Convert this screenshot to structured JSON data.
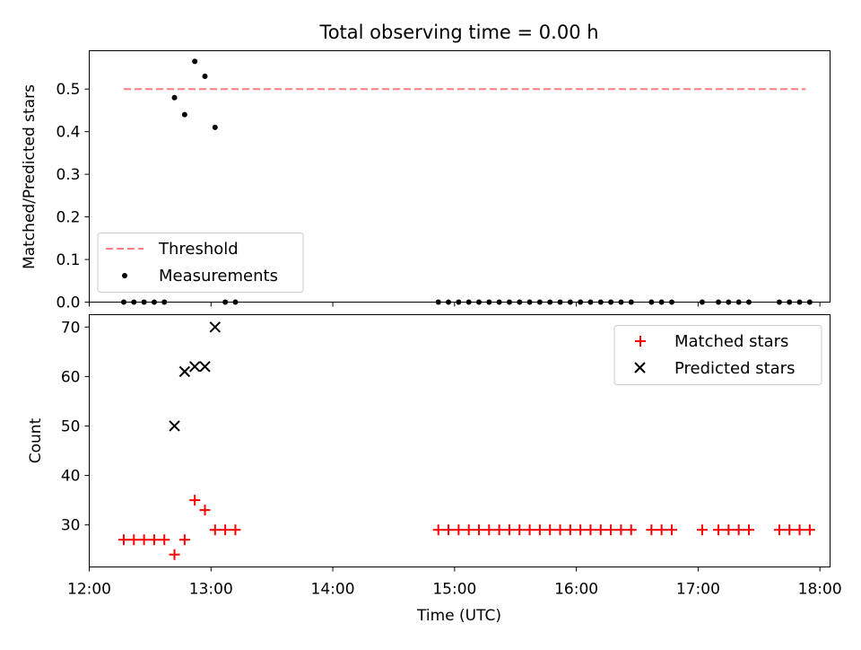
{
  "figure": {
    "title": "Total observing time = 0.00 h",
    "xlabel": "Time (UTC)",
    "x_ticks": [
      "12:00",
      "13:00",
      "14:00",
      "15:00",
      "16:00",
      "17:00",
      "18:00"
    ]
  },
  "chart_data": [
    {
      "type": "scatter",
      "title": "Total observing time = 0.00 h",
      "xlabel": "",
      "ylabel": "Matched/Predicted stars",
      "xlim": [
        "12:00",
        "18:05"
      ],
      "ylim": [
        0,
        0.59
      ],
      "y_ticks": [
        "0.0",
        "0.1",
        "0.2",
        "0.3",
        "0.4",
        "0.5"
      ],
      "legend_position": "lower-left",
      "threshold": {
        "name": "Threshold",
        "color": "#ff7f7f",
        "value": 0.5,
        "x_range": [
          "12:17",
          "17:53"
        ]
      },
      "series": [
        {
          "name": "Measurements",
          "color": "#000000",
          "marker": "dot",
          "points": [
            [
              "12:17",
              0
            ],
            [
              "12:22",
              0
            ],
            [
              "12:27",
              0
            ],
            [
              "12:32",
              0
            ],
            [
              "12:37",
              0
            ],
            [
              "12:42",
              0.48
            ],
            [
              "12:47",
              0.44
            ],
            [
              "12:52",
              0.565
            ],
            [
              "12:57",
              0.53
            ],
            [
              "13:02",
              0.41
            ],
            [
              "13:07",
              0
            ],
            [
              "13:12",
              0
            ],
            [
              "14:52",
              0
            ],
            [
              "14:57",
              0
            ],
            [
              "15:02",
              0
            ],
            [
              "15:07",
              0
            ],
            [
              "15:12",
              0
            ],
            [
              "15:17",
              0
            ],
            [
              "15:22",
              0
            ],
            [
              "15:27",
              0
            ],
            [
              "15:32",
              0
            ],
            [
              "15:37",
              0
            ],
            [
              "15:42",
              0
            ],
            [
              "15:47",
              0
            ],
            [
              "15:52",
              0
            ],
            [
              "15:57",
              0
            ],
            [
              "16:02",
              0
            ],
            [
              "16:07",
              0
            ],
            [
              "16:12",
              0
            ],
            [
              "16:17",
              0
            ],
            [
              "16:22",
              0
            ],
            [
              "16:27",
              0
            ],
            [
              "16:37",
              0
            ],
            [
              "16:42",
              0
            ],
            [
              "16:47",
              0
            ],
            [
              "17:02",
              0
            ],
            [
              "17:10",
              0
            ],
            [
              "17:15",
              0
            ],
            [
              "17:20",
              0
            ],
            [
              "17:25",
              0
            ],
            [
              "17:40",
              0
            ],
            [
              "17:45",
              0
            ],
            [
              "17:50",
              0
            ],
            [
              "17:55",
              0
            ]
          ]
        }
      ]
    },
    {
      "type": "scatter",
      "title": "",
      "xlabel": "Time (UTC)",
      "ylabel": "Count",
      "xlim": [
        "12:00",
        "18:05"
      ],
      "ylim": [
        21.5,
        72.5
      ],
      "y_ticks": [
        "30",
        "40",
        "50",
        "60",
        "70"
      ],
      "legend_position": "top-right",
      "series": [
        {
          "name": "Matched stars",
          "color": "#ff0000",
          "marker": "plus",
          "points": [
            [
              "12:17",
              27
            ],
            [
              "12:22",
              27
            ],
            [
              "12:27",
              27
            ],
            [
              "12:32",
              27
            ],
            [
              "12:37",
              27
            ],
            [
              "12:42",
              24
            ],
            [
              "12:47",
              27
            ],
            [
              "12:52",
              35
            ],
            [
              "12:57",
              33
            ],
            [
              "13:02",
              29
            ],
            [
              "13:07",
              29
            ],
            [
              "13:12",
              29
            ],
            [
              "14:52",
              29
            ],
            [
              "14:57",
              29
            ],
            [
              "15:02",
              29
            ],
            [
              "15:07",
              29
            ],
            [
              "15:12",
              29
            ],
            [
              "15:17",
              29
            ],
            [
              "15:22",
              29
            ],
            [
              "15:27",
              29
            ],
            [
              "15:32",
              29
            ],
            [
              "15:37",
              29
            ],
            [
              "15:42",
              29
            ],
            [
              "15:47",
              29
            ],
            [
              "15:52",
              29
            ],
            [
              "15:57",
              29
            ],
            [
              "16:02",
              29
            ],
            [
              "16:07",
              29
            ],
            [
              "16:12",
              29
            ],
            [
              "16:17",
              29
            ],
            [
              "16:22",
              29
            ],
            [
              "16:27",
              29
            ],
            [
              "16:37",
              29
            ],
            [
              "16:42",
              29
            ],
            [
              "16:47",
              29
            ],
            [
              "17:02",
              29
            ],
            [
              "17:10",
              29
            ],
            [
              "17:15",
              29
            ],
            [
              "17:20",
              29
            ],
            [
              "17:25",
              29
            ],
            [
              "17:40",
              29
            ],
            [
              "17:45",
              29
            ],
            [
              "17:50",
              29
            ],
            [
              "17:55",
              29
            ]
          ]
        },
        {
          "name": "Predicted stars",
          "color": "#000000",
          "marker": "x",
          "points": [
            [
              "12:42",
              50
            ],
            [
              "12:47",
              61
            ],
            [
              "12:52",
              62
            ],
            [
              "12:57",
              62
            ],
            [
              "13:02",
              70
            ]
          ]
        }
      ]
    }
  ]
}
